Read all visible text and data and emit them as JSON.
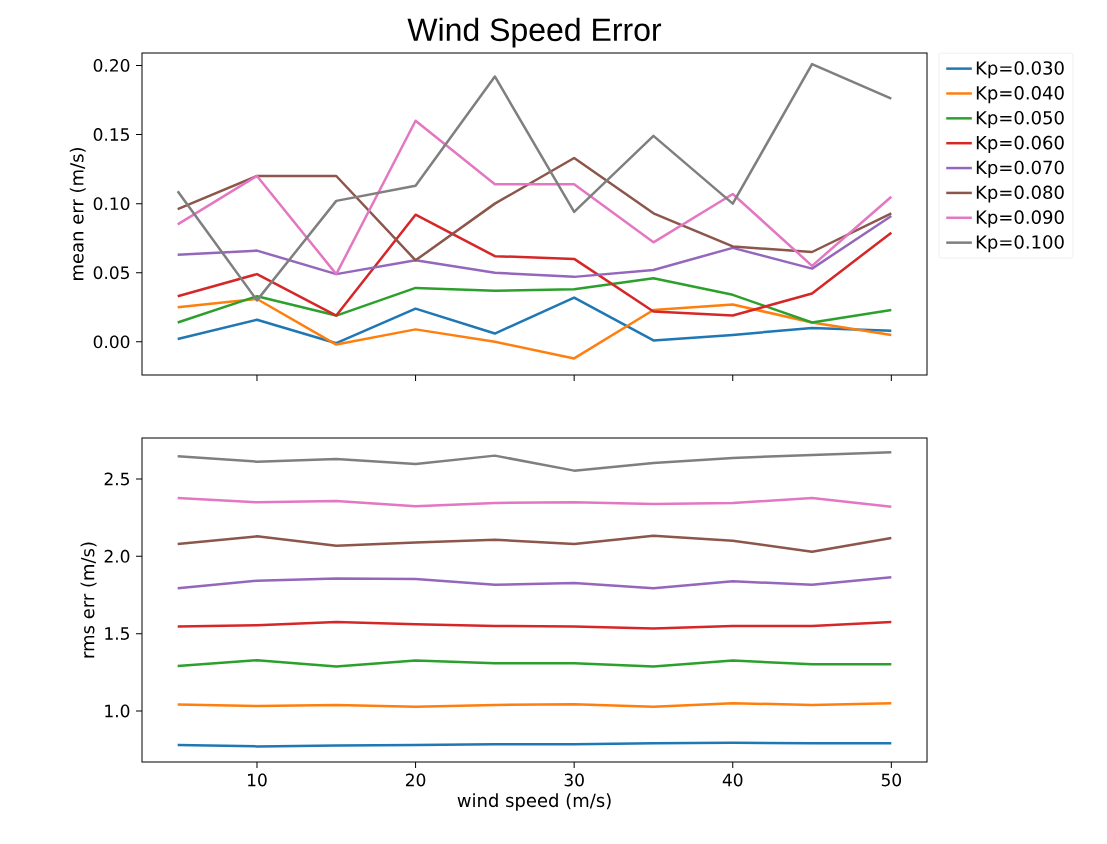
{
  "chart_data": [
    {
      "type": "line",
      "title": "Wind Speed Error",
      "ylabel": "mean err (m/s)",
      "x": [
        5,
        10,
        15,
        20,
        25,
        30,
        35,
        40,
        45,
        50
      ],
      "xlim": [
        2.75,
        52.25
      ],
      "xticks": [
        10,
        20,
        30,
        40,
        50
      ],
      "ylim": [
        -0.024,
        0.209
      ],
      "yticks": [
        {
          "value": 0,
          "label": "0.00"
        },
        {
          "value": 0.05,
          "label": "0.05"
        },
        {
          "value": 0.1,
          "label": "0.10"
        },
        {
          "value": 0.15,
          "label": "0.15"
        },
        {
          "value": 0.2,
          "label": "0.20"
        }
      ],
      "tick_labels": "y",
      "legend": "top right",
      "series": [
        {
          "name": "Kp=0.030",
          "color": "#1f77b4",
          "values": [
            0.002,
            0.016,
            -0.001,
            0.024,
            0.006,
            0.032,
            0.001,
            0.005,
            0.01,
            0.008
          ]
        },
        {
          "name": "Kp=0.040",
          "color": "#ff7f0e",
          "values": [
            0.025,
            0.031,
            -0.002,
            0.009,
            0.0,
            -0.012,
            0.023,
            0.027,
            0.014,
            0.005
          ]
        },
        {
          "name": "Kp=0.050",
          "color": "#2ca02c",
          "values": [
            0.014,
            0.033,
            0.019,
            0.039,
            0.037,
            0.038,
            0.046,
            0.034,
            0.014,
            0.023
          ]
        },
        {
          "name": "Kp=0.060",
          "color": "#d62728",
          "values": [
            0.033,
            0.049,
            0.019,
            0.092,
            0.062,
            0.06,
            0.022,
            0.019,
            0.035,
            0.079
          ]
        },
        {
          "name": "Kp=0.070",
          "color": "#9467bd",
          "values": [
            0.063,
            0.066,
            0.049,
            0.059,
            0.05,
            0.047,
            0.052,
            0.068,
            0.053,
            0.091
          ]
        },
        {
          "name": "Kp=0.080",
          "color": "#8c564b",
          "values": [
            0.096,
            0.12,
            0.12,
            0.059,
            0.1,
            0.133,
            0.093,
            0.069,
            0.065,
            0.093
          ]
        },
        {
          "name": "Kp=0.090",
          "color": "#e377c2",
          "values": [
            0.085,
            0.12,
            0.049,
            0.16,
            0.114,
            0.114,
            0.072,
            0.107,
            0.055,
            0.105
          ]
        },
        {
          "name": "Kp=0.100",
          "color": "#7f7f7f",
          "values": [
            0.109,
            0.03,
            0.102,
            0.113,
            0.192,
            0.094,
            0.149,
            0.1,
            0.201,
            0.176
          ]
        }
      ]
    },
    {
      "type": "line",
      "xlabel": "wind speed (m/s)",
      "ylabel": "rms err (m/s)",
      "x": [
        5,
        10,
        15,
        20,
        25,
        30,
        35,
        40,
        45,
        50
      ],
      "xlim": [
        2.75,
        52.25
      ],
      "xticks": [
        10,
        20,
        30,
        40,
        50
      ],
      "ylim": [
        0.67,
        2.765
      ],
      "yticks": [
        {
          "value": 1.0,
          "label": "1.0"
        },
        {
          "value": 1.5,
          "label": "1.5"
        },
        {
          "value": 2.0,
          "label": "2.0"
        },
        {
          "value": 2.5,
          "label": "2.5"
        }
      ],
      "series": [
        {
          "color": "#1f77b4",
          "values": [
            0.78,
            0.771,
            0.776,
            0.78,
            0.784,
            0.784,
            0.791,
            0.795,
            0.791,
            0.791
          ]
        },
        {
          "color": "#ff7f0e",
          "values": [
            1.041,
            1.032,
            1.039,
            1.028,
            1.039,
            1.043,
            1.028,
            1.05,
            1.039,
            1.05
          ]
        },
        {
          "color": "#2ca02c",
          "values": [
            1.291,
            1.328,
            1.287,
            1.326,
            1.309,
            1.309,
            1.287,
            1.326,
            1.302,
            1.302
          ]
        },
        {
          "color": "#d62728",
          "values": [
            1.546,
            1.555,
            1.576,
            1.561,
            1.55,
            1.546,
            1.533,
            1.55,
            1.55,
            1.576
          ]
        },
        {
          "color": "#9467bd",
          "values": [
            1.794,
            1.842,
            1.857,
            1.853,
            1.816,
            1.827,
            1.794,
            1.838,
            1.816,
            1.864
          ]
        },
        {
          "color": "#8c564b",
          "values": [
            2.079,
            2.129,
            2.068,
            2.09,
            2.107,
            2.079,
            2.133,
            2.101,
            2.029,
            2.118
          ]
        },
        {
          "color": "#e377c2",
          "values": [
            2.377,
            2.349,
            2.358,
            2.323,
            2.345,
            2.349,
            2.338,
            2.345,
            2.377,
            2.321
          ]
        },
        {
          "color": "#7f7f7f",
          "values": [
            2.647,
            2.612,
            2.629,
            2.597,
            2.651,
            2.554,
            2.604,
            2.636,
            2.655,
            2.673
          ]
        }
      ]
    }
  ]
}
